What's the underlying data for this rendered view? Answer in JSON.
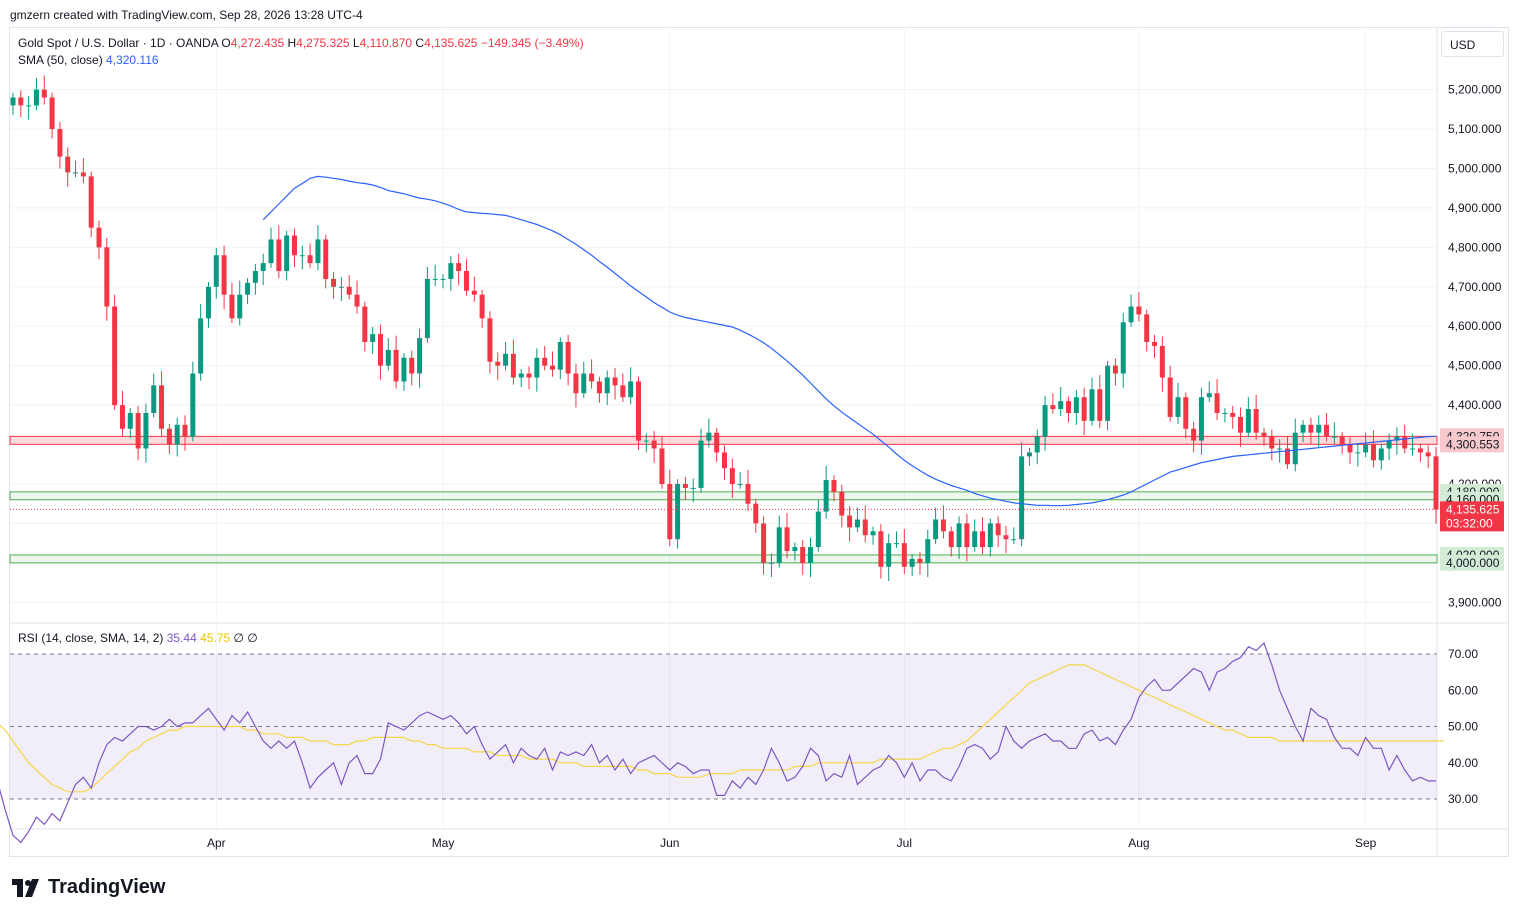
{
  "header": {
    "credit": "gmzern created with TradingView.com, Sep 28, 2026 13:28 UTC-4"
  },
  "legend": {
    "symbol": "Gold Spot / U.S. Dollar · 1D · OANDA",
    "o_label": "O",
    "o_value": "4,272.435",
    "h_label": "H",
    "h_value": "4,275.325",
    "l_label": "L",
    "l_value": "4,110.870",
    "c_label": "C",
    "c_value": "4,135.625",
    "change": "−149.345 (−3.49%)",
    "sma_label": "SMA (50, close)",
    "sma_value": "4,320.116"
  },
  "rsi_legend": {
    "label": "RSI (14, close, SMA, 14, 2)",
    "rsi_value": "35.44",
    "ma_value": "45.75",
    "extra": "∅ ∅"
  },
  "currency": "USD",
  "logo": {
    "text": "TradingView",
    "icon": "tradingview-logo-icon"
  },
  "colors": {
    "up": "#089981",
    "down": "#f23645",
    "sma": "#2962ff",
    "rsi": "#7e57c2",
    "rsi_ma": "#f5d74a",
    "support": "#4caf50",
    "resistance": "#f23645"
  },
  "chart_data": {
    "type": "candlestick",
    "price_axis": {
      "min": 3850,
      "max": 5270,
      "ticks": [
        "5,200.000",
        "5,100.000",
        "5,000.000",
        "4,900.000",
        "4,800.000",
        "4,700.000",
        "4,600.000",
        "4,500.000",
        "4,400.000",
        "4,300.000",
        "4,200.000",
        "4,100.000",
        "4,000.000",
        "3,900.000"
      ],
      "tick_values": [
        5200,
        5100,
        5000,
        4900,
        4800,
        4700,
        4600,
        4500,
        4400,
        4300,
        4200,
        4100,
        4000,
        3900
      ]
    },
    "time_axis": {
      "labels": [
        "Apr",
        "May",
        "Jun",
        "Jul",
        "Aug",
        "Sep"
      ],
      "label_bar_index": [
        26,
        55,
        84,
        114,
        144,
        173
      ]
    },
    "zones": [
      {
        "kind": "resistance",
        "top": 4320.75,
        "bottom": 4300.553,
        "top_label": "4,320.750",
        "bottom_label": "4,300.553"
      },
      {
        "kind": "support",
        "top": 4180,
        "bottom": 4160,
        "top_label": "4,180.000",
        "bottom_label": "4,160.000"
      },
      {
        "kind": "support",
        "top": 4020,
        "bottom": 4000,
        "top_label": "4,020.000",
        "bottom_label": "4,000.000"
      }
    ],
    "last_price": {
      "value": 4135.625,
      "label": "4,135.625",
      "countdown": "03:32:00"
    },
    "closes": [
      5180,
      5160,
      5160,
      5200,
      5180,
      5100,
      5030,
      4990,
      4990,
      4980,
      4850,
      4800,
      4650,
      4400,
      4340,
      4380,
      4290,
      4380,
      4450,
      4340,
      4300,
      4350,
      4320,
      4480,
      4620,
      4700,
      4780,
      4680,
      4620,
      4680,
      4710,
      4740,
      4760,
      4820,
      4740,
      4830,
      4780,
      4780,
      4760,
      4820,
      4720,
      4700,
      4700,
      4680,
      4650,
      4560,
      4580,
      4500,
      4540,
      4460,
      4520,
      4480,
      4570,
      4720,
      4720,
      4720,
      4760,
      4740,
      4690,
      4680,
      4620,
      4510,
      4500,
      4530,
      4470,
      4480,
      4470,
      4520,
      4500,
      4490,
      4560,
      4480,
      4430,
      4480,
      4460,
      4430,
      4470,
      4450,
      4420,
      4460,
      4310,
      4310,
      4290,
      4200,
      4060,
      4200,
      4190,
      4190,
      4310,
      4330,
      4280,
      4240,
      4200,
      4200,
      4150,
      4100,
      4000,
      4000,
      4090,
      4030,
      4040,
      4000,
      4040,
      4130,
      4210,
      4180,
      4120,
      4090,
      4110,
      4070,
      4080,
      3990,
      4050,
      4050,
      3990,
      4010,
      4000,
      4060,
      4110,
      4080,
      4040,
      4100,
      4040,
      4080,
      4040,
      4100,
      4070,
      4060,
      4060,
      4270,
      4280,
      4320,
      4400,
      4390,
      4410,
      4380,
      4420,
      4360,
      4440,
      4360,
      4500,
      4480,
      4610,
      4650,
      4630,
      4560,
      4550,
      4470,
      4370,
      4420,
      4340,
      4310,
      4420,
      4430,
      4380,
      4380,
      4370,
      4330,
      4390,
      4330,
      4320,
      4290,
      4290,
      4250,
      4330,
      4350,
      4330,
      4350,
      4320,
      4320,
      4300,
      4280,
      4280,
      4300,
      4260,
      4290,
      4310,
      4320,
      4290,
      4290,
      4280,
      4270,
      4135
    ],
    "sma50": [
      4870,
      4890,
      4910,
      4930,
      4950,
      4962,
      4975,
      4980,
      4978,
      4975,
      4972,
      4968,
      4964,
      4962,
      4958,
      4952,
      4944,
      4940,
      4936,
      4930,
      4925,
      4922,
      4918,
      4912,
      4905,
      4896,
      4890,
      4888,
      4886,
      4885,
      4883,
      4881,
      4876,
      4870,
      4864,
      4858,
      4850,
      4842,
      4832,
      4820,
      4808,
      4794,
      4780,
      4764,
      4750,
      4734,
      4718,
      4702,
      4688,
      4674,
      4660,
      4648,
      4636,
      4628,
      4622,
      4618,
      4614,
      4610,
      4606,
      4602,
      4598,
      4590,
      4580,
      4570,
      4558,
      4544,
      4528,
      4512,
      4494,
      4476,
      4456,
      4436,
      4416,
      4398,
      4382,
      4368,
      4354,
      4340,
      4326,
      4310,
      4294,
      4276,
      4260,
      4246,
      4234,
      4222,
      4212,
      4204,
      4196,
      4190,
      4184,
      4176,
      4170,
      4164,
      4160,
      4156,
      4152,
      4150,
      4148,
      4146,
      4146,
      4145,
      4145,
      4146,
      4148,
      4150,
      4152,
      4156,
      4160,
      4166,
      4172,
      4180,
      4190,
      4200,
      4210,
      4220,
      4230,
      4236,
      4242,
      4248,
      4254,
      4258,
      4262,
      4266,
      4270,
      4272,
      4274,
      4276,
      4278,
      4280,
      4282,
      4284,
      4286,
      4288,
      4290,
      4292,
      4294,
      4296,
      4298,
      4300,
      4302,
      4304,
      4306,
      4308,
      4310,
      4312,
      4314,
      4316,
      4318,
      4320,
      4321
    ],
    "rsi": [
      55,
      52,
      51,
      53,
      55,
      51,
      48,
      47,
      46,
      35,
      27,
      20,
      18,
      21,
      25,
      23,
      26,
      24,
      29,
      34,
      36,
      33,
      40,
      45,
      47,
      46,
      48,
      50,
      50,
      49,
      50,
      52,
      50,
      51,
      51,
      53,
      55,
      52,
      49,
      53,
      51,
      54,
      50,
      46,
      44,
      46,
      44,
      46,
      40,
      33,
      36,
      38,
      40,
      34,
      40,
      42,
      37,
      37,
      41,
      51,
      50,
      49,
      51,
      53,
      54,
      53,
      52,
      53,
      51,
      48,
      50,
      45,
      41,
      43,
      45,
      40,
      44,
      42,
      41,
      44,
      38,
      43,
      42,
      43,
      42,
      45,
      40,
      42,
      38,
      41,
      37,
      40,
      41,
      42,
      40,
      38,
      40,
      39,
      37,
      38,
      38,
      31,
      31,
      35,
      33,
      36,
      34,
      38,
      44,
      40,
      35,
      36,
      39,
      44,
      42,
      35,
      37,
      36,
      42,
      34,
      36,
      38,
      39,
      42,
      40,
      36,
      40,
      35,
      38,
      38,
      36,
      35,
      39,
      44,
      45,
      44,
      41,
      43,
      50,
      46,
      44,
      46,
      47,
      48,
      46,
      46,
      44,
      44,
      48,
      49,
      46,
      47,
      45,
      49,
      52,
      58,
      61,
      63,
      60,
      60,
      62,
      64,
      66,
      65,
      60,
      65,
      66,
      68,
      69,
      72,
      71,
      73,
      67,
      60,
      55,
      50,
      46,
      55,
      53,
      52,
      47,
      44,
      44,
      42,
      47,
      44,
      44,
      38,
      42,
      38,
      35,
      36,
      35,
      35
    ],
    "rsi_ma": [
      57,
      58,
      58,
      58,
      57,
      56,
      55,
      54,
      53,
      51,
      49,
      46,
      43,
      40,
      38,
      36,
      34,
      33,
      32,
      32,
      32,
      33,
      35,
      37,
      39,
      41,
      43,
      44,
      46,
      47,
      48,
      49,
      49,
      50,
      50,
      50,
      50,
      50,
      50,
      50,
      50,
      49,
      49,
      48,
      48,
      48,
      47,
      47,
      47,
      46,
      46,
      46,
      45,
      45,
      45,
      46,
      46,
      47,
      47,
      47,
      47,
      47,
      46,
      46,
      45,
      45,
      44,
      44,
      44,
      44,
      43,
      43,
      43,
      42,
      42,
      42,
      42,
      41,
      41,
      41,
      41,
      40,
      40,
      40,
      39,
      39,
      39,
      39,
      39,
      39,
      39,
      38,
      38,
      37,
      37,
      37,
      36,
      36,
      36,
      36,
      37,
      37,
      37,
      37,
      38,
      38,
      38,
      38,
      38,
      38,
      38,
      39,
      39,
      39,
      40,
      40,
      40,
      40,
      40,
      40,
      40,
      40,
      41,
      41,
      41,
      41,
      41,
      41,
      42,
      43,
      44,
      44,
      45,
      46,
      48,
      50,
      52,
      54,
      56,
      58,
      60,
      62,
      63,
      64,
      65,
      66,
      67,
      67,
      67,
      66,
      65,
      64,
      63,
      62,
      61,
      60,
      59,
      58,
      57,
      56,
      55,
      54,
      53,
      52,
      51,
      50,
      49,
      49,
      48,
      47,
      47,
      47,
      47,
      46,
      46,
      46,
      46,
      46,
      46,
      46,
      46,
      46,
      46,
      46,
      46,
      46,
      46,
      46,
      46,
      46,
      46,
      46,
      46,
      46,
      46
    ],
    "rsi_axis": {
      "min": 22,
      "max": 78,
      "ticks": [
        "70.00",
        "60.00",
        "50.00",
        "40.00",
        "30.00"
      ],
      "tick_values": [
        70,
        60,
        50,
        40,
        30
      ],
      "upper_band": 70,
      "lower_band": 30
    }
  }
}
